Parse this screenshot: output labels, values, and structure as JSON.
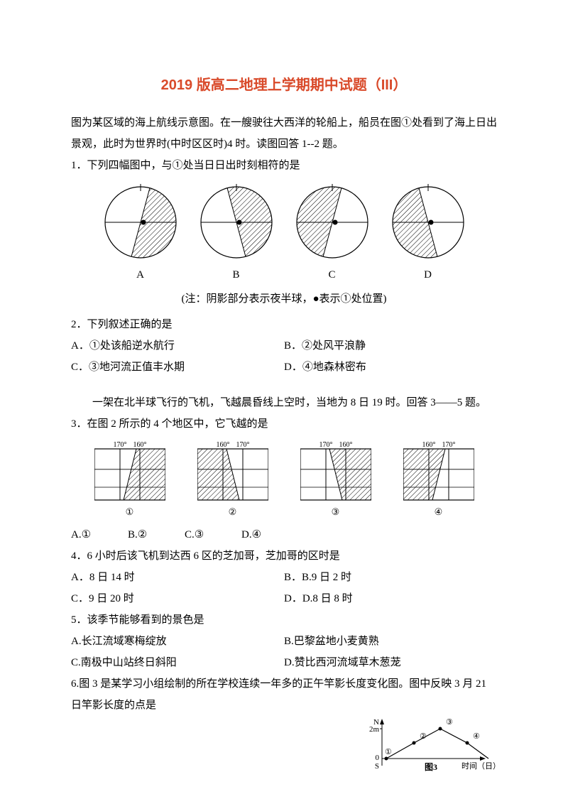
{
  "title": "2019 版高二地理上学期期中试题（III）",
  "intro1": "图为某区域的海上航线示意图。在一艘驶往大西洋的轮船上，船员在图①处看到了海上日出景观，此时为世界时(中时区区时)4 时。读图回答 1--2 题。",
  "q1": "1．下列四幅图中，与①处当日日出时刻相符的是",
  "circles": {
    "labels": [
      "A",
      "B",
      "C",
      "D"
    ],
    "colors": {
      "circle_stroke": "#000000",
      "eq_stroke": "#000000",
      "night_fill": "#000000",
      "night_opacity": 0.0,
      "hatch_stroke": "#000000",
      "hatch_spacing": 5,
      "dot_fill": "#000000"
    },
    "items": [
      {
        "tilt": 15,
        "shade": "right"
      },
      {
        "tilt": -15,
        "shade": "right"
      },
      {
        "tilt": 15,
        "shade": "left"
      },
      {
        "tilt": -15,
        "shade": "left"
      }
    ]
  },
  "note": "(注：阴影部分表示夜半球，●表示①处位置)",
  "q2": {
    "stem": "2．下列叙述正确的是",
    "opts": {
      "A": "A．①处该船逆水航行",
      "B": "B．②处风平浪静",
      "C": "C．③地河流正值丰水期",
      "D": "D．④地森林密布"
    }
  },
  "intro2": "一架在北半球飞行的飞机，飞越晨昏线上空时，当地为 8 日 19 时。回答 3——5 题。",
  "q3": "3．在图 2 所示的 4 个地区中，它飞越的是",
  "rects": {
    "labels": [
      "①",
      "②",
      "③",
      "④"
    ],
    "toplabels": [
      [
        "170°",
        "160°"
      ],
      [
        "160°",
        "170°"
      ],
      [
        "170°",
        "160°"
      ],
      [
        "160°",
        "170°"
      ]
    ],
    "items": [
      {
        "tilt": -14,
        "shade": "right"
      },
      {
        "tilt": 14,
        "shade": "left"
      },
      {
        "tilt": 14,
        "shade": "right"
      },
      {
        "tilt": -14,
        "shade": "left"
      }
    ],
    "colors": {
      "border": "#000000",
      "hatch_stroke": "#000000",
      "hatch_spacing": 5,
      "toplabel_size": 10
    }
  },
  "q3opts": {
    "A": "A.①",
    "B": "B.②",
    "C": "C.③",
    "D": "D.④"
  },
  "q4": {
    "stem": "4．6 小时后该飞机到达西 6 区的芝加哥，芝加哥的区时是",
    "opts": {
      "A": "A．8 日 14 时",
      "B": "B．B.9 日 2 时",
      "C": "C．9 日 20 时",
      "D": "D．D.8 日 8 时"
    }
  },
  "q5": {
    "stem": "5．该季节能够看到的景色是",
    "opts": {
      "A": "A.长江流域寒梅绽放",
      "B": "B.巴黎盆地小麦黄熟",
      "C": "C.南极中山站终日斜阳",
      "D": "D.赞比西河流域草木葱茏"
    }
  },
  "q6": {
    "stem": "6.图 3 是某学习小组绘制的所在学校连续一年多的正午竿影长度变化图。图中反映 3 月 21 日竿影长度的点是",
    "fig": {
      "ylabel_top": "N",
      "ytick": "2m",
      "yzero": "0",
      "ylabel_bot": "S",
      "caption": "图3",
      "xlabel": "时间（日）",
      "pts_labels": [
        "①",
        "②",
        "③",
        "④"
      ]
    }
  }
}
